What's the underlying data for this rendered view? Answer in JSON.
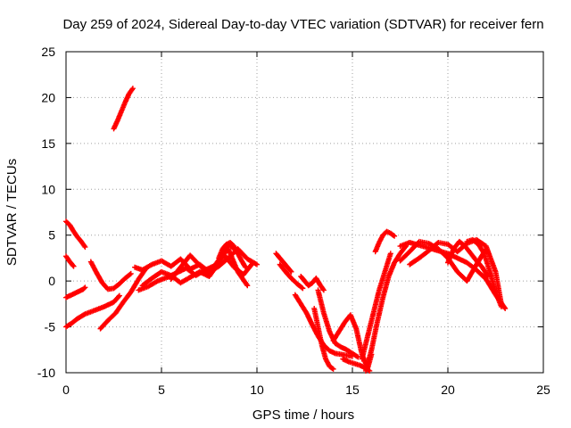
{
  "chart_data": {
    "type": "scatter",
    "title": "Day 259 of 2024, Sidereal Day-to-day VTEC variation (SDTVAR) for receiver fern",
    "xlabel": "GPS time / hours",
    "ylabel": "SDTVAR / TECUs",
    "xlim": [
      0,
      25
    ],
    "ylim": [
      -10,
      25
    ],
    "xticks": [
      "0",
      "5",
      "10",
      "15",
      "20",
      "25"
    ],
    "yticks": [
      "-10",
      "-5",
      "0",
      "5",
      "10",
      "15",
      "20",
      "25"
    ],
    "grid": true,
    "marker": "plus",
    "color": "#ff0000",
    "traces": [
      {
        "x": [
          0.0,
          0.2,
          0.4,
          0.6,
          0.8,
          1.0
        ],
        "y": [
          6.5,
          6.1,
          5.4,
          4.8,
          4.3,
          3.7
        ]
      },
      {
        "x": [
          0.0,
          0.2,
          0.4
        ],
        "y": [
          2.7,
          2.1,
          1.6
        ]
      },
      {
        "x": [
          0.0,
          0.3,
          0.6,
          0.9,
          1.0
        ],
        "y": [
          -1.8,
          -1.5,
          -1.2,
          -0.9,
          -0.7
        ]
      },
      {
        "x": [
          0.0,
          0.3,
          0.6,
          1.0,
          1.5,
          2.0,
          2.5,
          2.8
        ],
        "y": [
          -5.0,
          -4.6,
          -4.1,
          -3.6,
          -3.2,
          -2.8,
          -2.3,
          -1.6
        ]
      },
      {
        "x": [
          1.3,
          1.6,
          1.9,
          2.2,
          2.5,
          2.8,
          3.1,
          3.4
        ],
        "y": [
          2.1,
          0.9,
          -0.2,
          -0.9,
          -0.8,
          -0.3,
          0.3,
          0.8
        ]
      },
      {
        "x": [
          1.8,
          2.2,
          2.6,
          3.0,
          3.4,
          3.8,
          4.2
        ],
        "y": [
          -5.2,
          -4.3,
          -3.5,
          -2.3,
          -1.2,
          0.2,
          1.4
        ]
      },
      {
        "x": [
          2.5,
          2.7,
          2.9,
          3.1,
          3.3,
          3.5
        ],
        "y": [
          16.6,
          17.5,
          18.5,
          19.5,
          20.4,
          21.0
        ]
      },
      {
        "x": [
          3.6,
          4.0,
          4.5,
          5.0,
          5.5,
          6.0,
          6.5,
          7.0,
          7.5,
          8.0,
          8.5,
          9.0,
          9.5,
          10.0
        ],
        "y": [
          1.5,
          1.2,
          1.8,
          2.2,
          1.6,
          2.4,
          1.3,
          1.8,
          1.0,
          1.6,
          2.5,
          3.5,
          2.4,
          1.8
        ]
      },
      {
        "x": [
          3.8,
          4.3,
          4.8,
          5.3,
          5.8,
          6.3,
          6.8,
          7.3,
          7.8,
          8.3,
          8.8,
          9.3,
          9.8
        ],
        "y": [
          -1.0,
          -0.6,
          0.0,
          0.4,
          0.9,
          1.4,
          0.6,
          1.2,
          1.7,
          2.8,
          1.5,
          0.7,
          2.0
        ]
      },
      {
        "x": [
          4.0,
          4.5,
          5.0,
          5.5,
          6.0,
          6.5,
          7.0,
          7.5,
          8.0,
          8.5,
          9.0
        ],
        "y": [
          -0.5,
          0.3,
          1.0,
          0.6,
          -0.2,
          0.4,
          1.0,
          0.5,
          2.0,
          4.0,
          3.2
        ]
      },
      {
        "x": [
          5.5,
          6.0,
          6.5,
          7.0,
          7.5,
          8.0,
          8.5,
          9.0,
          9.5
        ],
        "y": [
          0.2,
          1.5,
          2.8,
          1.7,
          0.8,
          2.3,
          3.5,
          1.0,
          -0.5
        ]
      },
      {
        "x": [
          8.0,
          8.2,
          8.4,
          8.6,
          8.8,
          9.0,
          9.2,
          9.4
        ],
        "y": [
          2.5,
          3.5,
          4.0,
          4.2,
          3.8,
          3.0,
          2.2,
          1.5
        ]
      },
      {
        "x": [
          11.0,
          11.2,
          11.4,
          11.6,
          11.8
        ],
        "y": [
          3.0,
          2.5,
          2.0,
          1.5,
          1.0
        ]
      },
      {
        "x": [
          11.2,
          11.5,
          11.8,
          12.1,
          12.4
        ],
        "y": [
          1.8,
          1.0,
          0.3,
          -0.3,
          -0.8
        ]
      },
      {
        "x": [
          12.3,
          12.5,
          12.7,
          12.9,
          13.1,
          13.3,
          13.5
        ],
        "y": [
          0.5,
          0.0,
          -0.5,
          -0.2,
          0.3,
          -0.4,
          -1.0
        ]
      },
      {
        "x": [
          12.0,
          12.3,
          12.6,
          12.9,
          13.2,
          13.5,
          13.8,
          14.1,
          14.4,
          14.7,
          15.0
        ],
        "y": [
          -1.5,
          -2.5,
          -3.5,
          -4.8,
          -6.0,
          -7.0,
          -7.6,
          -7.9,
          -8.0,
          -8.1,
          -8.2
        ]
      },
      {
        "x": [
          13.0,
          13.2,
          13.4,
          13.6,
          13.8,
          14.0
        ],
        "y": [
          -3.0,
          -5.0,
          -7.0,
          -8.5,
          -9.3,
          -9.6
        ]
      },
      {
        "x": [
          13.2,
          13.5,
          13.8,
          14.1,
          14.4,
          14.7,
          15.0,
          15.3
        ],
        "y": [
          -1.0,
          -3.5,
          -5.5,
          -6.8,
          -7.2,
          -7.5,
          -7.9,
          -8.3
        ]
      },
      {
        "x": [
          14.0,
          14.3,
          14.6,
          14.9,
          15.2,
          15.5,
          15.8,
          16.0
        ],
        "y": [
          -6.5,
          -5.5,
          -4.5,
          -3.7,
          -5.2,
          -8.0,
          -9.5,
          -8.0
        ]
      },
      {
        "x": [
          14.5,
          14.8,
          15.1,
          15.4,
          15.7,
          15.9
        ],
        "y": [
          -8.5,
          -8.8,
          -9.0,
          -9.2,
          -9.5,
          -9.8
        ]
      },
      {
        "x": [
          15.5,
          15.8,
          16.1,
          16.4,
          16.7,
          17.0
        ],
        "y": [
          -8.5,
          -6.0,
          -3.5,
          -1.0,
          1.0,
          3.0
        ]
      },
      {
        "x": [
          15.7,
          16.0,
          16.3,
          16.6,
          16.9,
          17.2,
          17.5,
          17.8
        ],
        "y": [
          -9.8,
          -7.5,
          -4.5,
          -1.8,
          0.5,
          2.0,
          3.0,
          3.8
        ]
      },
      {
        "x": [
          16.2,
          16.4,
          16.6,
          16.8,
          17.0,
          17.2
        ],
        "y": [
          3.2,
          4.2,
          5.0,
          5.4,
          5.2,
          4.9
        ]
      },
      {
        "x": [
          17.5,
          18.0,
          18.5,
          19.0,
          19.5,
          20.0,
          20.5,
          21.0,
          21.5,
          22.0
        ],
        "y": [
          2.2,
          3.2,
          4.3,
          4.1,
          3.5,
          2.5,
          1.0,
          0.0,
          1.8,
          3.5
        ]
      },
      {
        "x": [
          17.5,
          18.0,
          18.5,
          19.0,
          19.5,
          20.0,
          20.5,
          21.0,
          21.5,
          22.0,
          22.5,
          23.0
        ],
        "y": [
          3.8,
          4.2,
          3.9,
          3.6,
          3.3,
          3.0,
          2.5,
          2.0,
          1.2,
          0.2,
          -1.5,
          -3.0
        ]
      },
      {
        "x": [
          18.0,
          18.5,
          19.0,
          19.5,
          20.0,
          20.5,
          21.0,
          21.5,
          22.0,
          22.5,
          22.8
        ],
        "y": [
          1.8,
          2.5,
          3.3,
          4.2,
          4.0,
          3.2,
          4.1,
          4.5,
          3.8,
          1.0,
          -2.5
        ]
      },
      {
        "x": [
          20.0,
          20.3,
          20.6,
          20.9,
          21.2,
          21.5,
          21.8,
          22.1
        ],
        "y": [
          2.0,
          3.5,
          4.3,
          3.8,
          3.0,
          2.2,
          1.5,
          0.5
        ]
      },
      {
        "x": [
          21.0,
          21.3,
          21.6,
          21.9,
          22.2,
          22.5,
          22.8
        ],
        "y": [
          4.3,
          4.5,
          4.0,
          3.0,
          1.0,
          -1.2,
          -2.8
        ]
      }
    ]
  }
}
